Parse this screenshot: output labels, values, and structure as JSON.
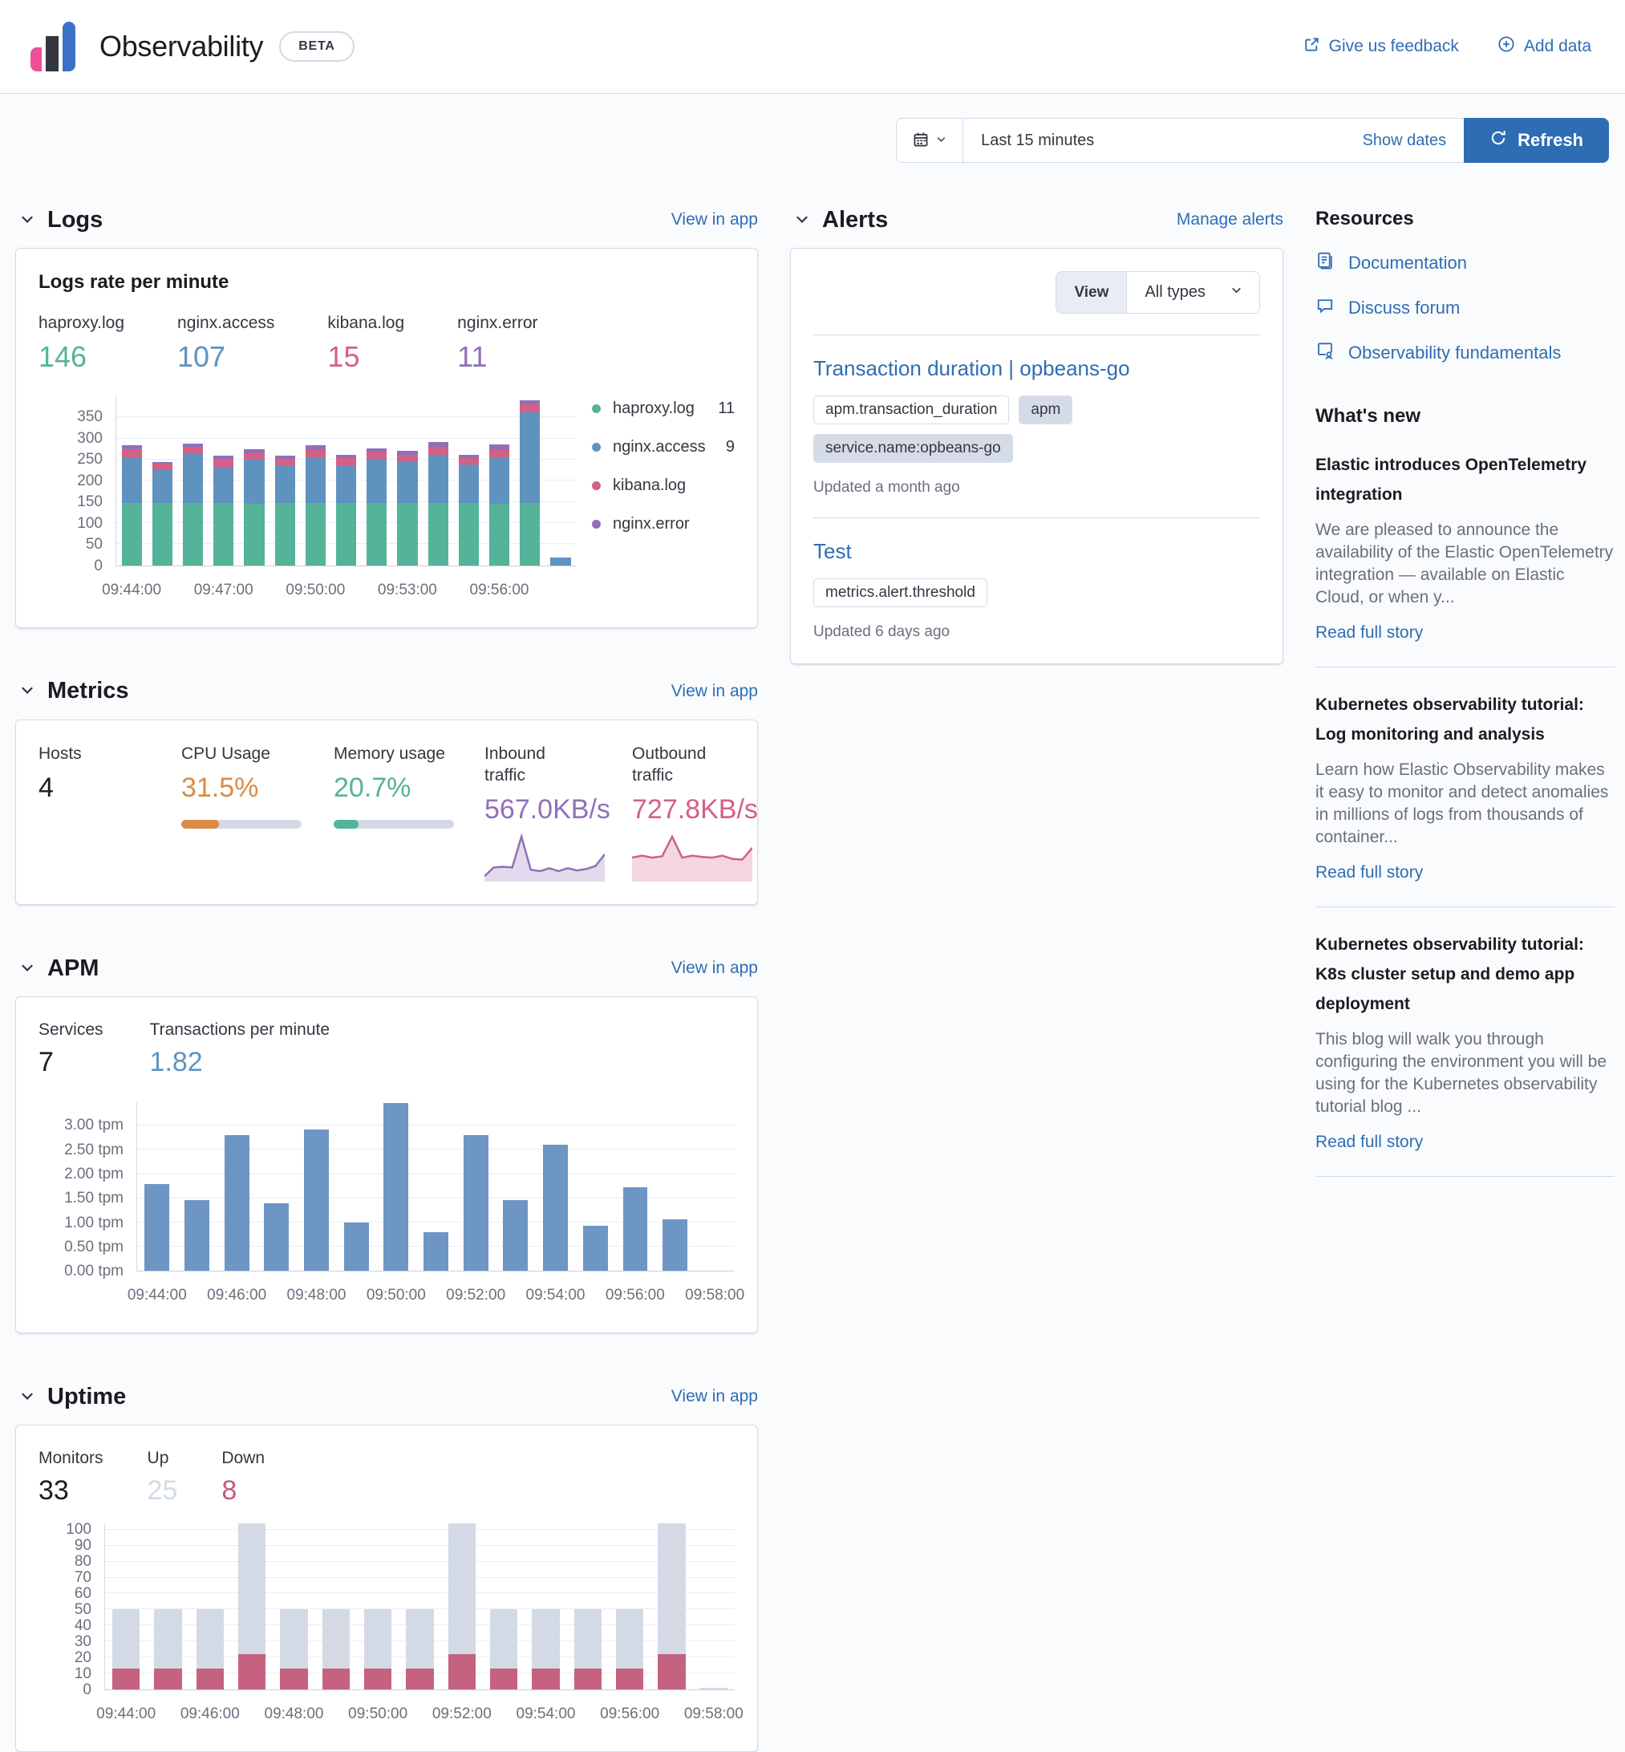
{
  "header": {
    "title": "Observability",
    "beta_badge": "BETA",
    "feedback_link": "Give us feedback",
    "add_data_link": "Add data"
  },
  "toolbar": {
    "time_range": "Last 15 minutes",
    "show_dates_label": "Show dates",
    "refresh_label": "Refresh"
  },
  "logs": {
    "section_title": "Logs",
    "view_in_app": "View in app",
    "panel_title": "Logs rate per minute",
    "stats": [
      {
        "label": "haproxy.log",
        "value": "146",
        "color": "#54B399"
      },
      {
        "label": "nginx.access",
        "value": "107",
        "color": "#6092C0"
      },
      {
        "label": "kibana.log",
        "value": "15",
        "color": "#D36086"
      },
      {
        "label": "nginx.error",
        "value": "11",
        "color": "#9170B8"
      }
    ],
    "legend": [
      {
        "label": "haproxy.log",
        "value": "11",
        "color": "#54B399"
      },
      {
        "label": "nginx.access",
        "value": "9",
        "color": "#6092C0"
      },
      {
        "label": "kibana.log",
        "value": "",
        "color": "#D36086"
      },
      {
        "label": "nginx.error",
        "value": "",
        "color": "#9170B8"
      }
    ]
  },
  "metrics": {
    "section_title": "Metrics",
    "view_in_app": "View in app",
    "stats": [
      {
        "label": "Hosts",
        "value": "4"
      },
      {
        "label": "CPU Usage",
        "value": "31.5%",
        "color": "#DA8B45",
        "percent": 31.5
      },
      {
        "label": "Memory usage",
        "value": "20.7%",
        "color": "#54B399",
        "percent": 20.7
      },
      {
        "label": "Inbound traffic",
        "value": "567.0KB/s",
        "color": "#9170B8"
      },
      {
        "label": "Outbound traffic",
        "value": "727.8KB/s",
        "color": "#D36086"
      }
    ]
  },
  "apm": {
    "section_title": "APM",
    "view_in_app": "View in app",
    "stats": [
      {
        "label": "Services",
        "value": "7"
      },
      {
        "label": "Transactions per minute",
        "value": "1.82",
        "color": "#6092C0"
      }
    ]
  },
  "uptime": {
    "section_title": "Uptime",
    "view_in_app": "View in app",
    "stats": [
      {
        "label": "Monitors",
        "value": "33"
      },
      {
        "label": "Up",
        "value": "25",
        "color": "#D3DAE6"
      },
      {
        "label": "Down",
        "value": "8",
        "color": "#C25B79"
      }
    ]
  },
  "alerts": {
    "section_title": "Alerts",
    "manage_link": "Manage alerts",
    "view_label": "View",
    "type_filter": "All types",
    "items": [
      {
        "title": "Transaction duration | opbeans-go",
        "badges": [
          {
            "label": "apm.transaction_duration",
            "style": "hollow"
          },
          {
            "label": "apm",
            "style": "filled"
          },
          {
            "label": "service.name:opbeans-go",
            "style": "filled"
          }
        ],
        "updated": "Updated a month ago"
      },
      {
        "title": "Test",
        "badges": [
          {
            "label": "metrics.alert.threshold",
            "style": "hollow"
          }
        ],
        "updated": "Updated 6 days ago"
      }
    ]
  },
  "resources": {
    "title": "Resources",
    "links": [
      {
        "label": "Documentation",
        "icon": "document-icon"
      },
      {
        "label": "Discuss forum",
        "icon": "discuss-icon"
      },
      {
        "label": "Observability fundamentals",
        "icon": "training-icon"
      }
    ]
  },
  "whats_new": {
    "title": "What's new",
    "items": [
      {
        "title": "Elastic introduces OpenTelemetry integration",
        "excerpt": "We are pleased to announce the availability of the Elastic OpenTelemetry integration — available on Elastic Cloud, or when y...",
        "link": "Read full story"
      },
      {
        "title": "Kubernetes observability tutorial: Log monitoring and analysis",
        "excerpt": "Learn how Elastic Observability makes it easy to monitor and detect anomalies in millions of logs from thousands of container...",
        "link": "Read full story"
      },
      {
        "title": "Kubernetes observability tutorial: K8s cluster setup and demo app deployment",
        "excerpt": "This blog will walk you through configuring the environment you will be using for the Kubernetes observability tutorial blog ...",
        "link": "Read full story"
      }
    ]
  },
  "chart_data": [
    {
      "id": "logs_rate",
      "type": "bar",
      "stacked": true,
      "title": "Logs rate per minute",
      "xlabel": "",
      "ylabel": "",
      "categories": [
        "09:44",
        "09:45",
        "09:46",
        "09:47",
        "09:48",
        "09:49",
        "09:50",
        "09:51",
        "09:52",
        "09:53",
        "09:54",
        "09:55",
        "09:56",
        "09:57",
        "09:58"
      ],
      "series": [
        {
          "name": "haproxy.log",
          "color": "#54B399",
          "values": [
            148,
            147,
            148,
            148,
            145,
            147,
            148,
            147,
            147,
            148,
            148,
            147,
            146,
            147,
            0
          ]
        },
        {
          "name": "nginx.access",
          "color": "#6092C0",
          "values": [
            107,
            78,
            115,
            82,
            105,
            89,
            108,
            88,
            105,
            97,
            114,
            92,
            110,
            215,
            18
          ]
        },
        {
          "name": "kibana.log",
          "color": "#D36086",
          "values": [
            20,
            15,
            15,
            20,
            15,
            16,
            17,
            18,
            16,
            17,
            18,
            15,
            16,
            18,
            0
          ]
        },
        {
          "name": "nginx.error",
          "color": "#9170B8",
          "values": [
            9,
            5,
            10,
            9,
            10,
            8,
            11,
            9,
            8,
            9,
            12,
            7,
            14,
            10,
            0
          ]
        }
      ],
      "ylim": [
        0,
        400
      ],
      "yticks": [
        {
          "v": 0,
          "label": "0"
        },
        {
          "v": 50,
          "label": "50"
        },
        {
          "v": 100,
          "label": "100"
        },
        {
          "v": 150,
          "label": "150"
        },
        {
          "v": 200,
          "label": "200"
        },
        {
          "v": 250,
          "label": "250"
        },
        {
          "v": 300,
          "label": "300"
        },
        {
          "v": 350,
          "label": "350"
        }
      ],
      "xticks": [
        {
          "slot": 0,
          "label": "09:44:00"
        },
        {
          "slot": 3,
          "label": "09:47:00"
        },
        {
          "slot": 6,
          "label": "09:50:00"
        },
        {
          "slot": 9,
          "label": "09:53:00"
        },
        {
          "slot": 12,
          "label": "09:56:00"
        }
      ],
      "bar_width_pct": 66
    },
    {
      "id": "apm_tpm",
      "type": "bar",
      "stacked": false,
      "title": "Transactions per minute",
      "xlabel": "",
      "ylabel": "tpm",
      "categories": [
        "09:44",
        "09:45",
        "09:46",
        "09:47",
        "09:48",
        "09:49",
        "09:50",
        "09:51",
        "09:52",
        "09:53",
        "09:54",
        "09:55",
        "09:56",
        "09:57",
        "09:58"
      ],
      "series": [
        {
          "name": "Transactions per minute",
          "color": "#6E96C4",
          "values": [
            1.8,
            1.47,
            2.8,
            1.4,
            2.93,
            1.0,
            3.47,
            0.8,
            2.8,
            1.47,
            2.6,
            0.93,
            1.73,
            1.07,
            0
          ]
        }
      ],
      "ylim": [
        0,
        3.5
      ],
      "yticks": [
        {
          "v": 0,
          "label": "0.00 tpm"
        },
        {
          "v": 0.5,
          "label": "0.50 tpm"
        },
        {
          "v": 1,
          "label": "1.00 tpm"
        },
        {
          "v": 1.5,
          "label": "1.50 tpm"
        },
        {
          "v": 2,
          "label": "2.00 tpm"
        },
        {
          "v": 2.5,
          "label": "2.50 tpm"
        },
        {
          "v": 3,
          "label": "3.00 tpm"
        }
      ],
      "xticks": [
        {
          "slot": 0,
          "label": "09:44:00"
        },
        {
          "slot": 2,
          "label": "09:46:00"
        },
        {
          "slot": 4,
          "label": "09:48:00"
        },
        {
          "slot": 6,
          "label": "09:50:00"
        },
        {
          "slot": 8,
          "label": "09:52:00"
        },
        {
          "slot": 10,
          "label": "09:54:00"
        },
        {
          "slot": 12,
          "label": "09:56:00"
        },
        {
          "slot": 14,
          "label": "09:58:00"
        }
      ],
      "bar_width_pct": 62
    },
    {
      "id": "uptime_monitors",
      "type": "bar",
      "stacked": true,
      "title": "Monitors up / down",
      "xlabel": "",
      "ylabel": "",
      "categories": [
        "09:44",
        "09:45",
        "09:46",
        "09:47",
        "09:48",
        "09:49",
        "09:50",
        "09:51",
        "09:52",
        "09:53",
        "09:54",
        "09:55",
        "09:56",
        "09:57",
        "09:58"
      ],
      "series": [
        {
          "name": "Down",
          "color": "#C4627F",
          "values": [
            13,
            13,
            13,
            22,
            13,
            13,
            13,
            13,
            22,
            13,
            13,
            13,
            13,
            22,
            0
          ]
        },
        {
          "name": "Up",
          "color": "#D3DAE6",
          "values": [
            37,
            37,
            37,
            82,
            37,
            37,
            37,
            37,
            82,
            37,
            37,
            37,
            37,
            82,
            1
          ]
        }
      ],
      "ylim": [
        0,
        104
      ],
      "yticks": [
        {
          "v": 0,
          "label": "0"
        },
        {
          "v": 10,
          "label": "10"
        },
        {
          "v": 20,
          "label": "20"
        },
        {
          "v": 30,
          "label": "30"
        },
        {
          "v": 40,
          "label": "40"
        },
        {
          "v": 50,
          "label": "50"
        },
        {
          "v": 60,
          "label": "60"
        },
        {
          "v": 70,
          "label": "70"
        },
        {
          "v": 80,
          "label": "80"
        },
        {
          "v": 90,
          "label": "90"
        },
        {
          "v": 100,
          "label": "100"
        }
      ],
      "xticks": [
        {
          "slot": 0,
          "label": "09:44:00"
        },
        {
          "slot": 2,
          "label": "09:46:00"
        },
        {
          "slot": 4,
          "label": "09:48:00"
        },
        {
          "slot": 6,
          "label": "09:50:00"
        },
        {
          "slot": 8,
          "label": "09:52:00"
        },
        {
          "slot": 10,
          "label": "09:54:00"
        },
        {
          "slot": 12,
          "label": "09:56:00"
        },
        {
          "slot": 14,
          "label": "09:58:00"
        }
      ],
      "bar_width_pct": 66
    },
    {
      "id": "inbound_spark",
      "type": "area",
      "title": "Inbound traffic",
      "color": "#9170B8",
      "fill": "rgba(145,112,184,0.25)",
      "values": [
        4,
        16,
        17,
        16,
        58,
        13,
        11,
        15,
        11,
        15,
        12,
        14,
        18,
        34
      ]
    },
    {
      "id": "outbound_spark",
      "type": "area",
      "title": "Outbound traffic",
      "color": "#D36086",
      "fill": "rgba(211,96,134,0.25)",
      "values": [
        33,
        36,
        33,
        35,
        65,
        33,
        36,
        34,
        33,
        36,
        31,
        30,
        48
      ]
    }
  ]
}
